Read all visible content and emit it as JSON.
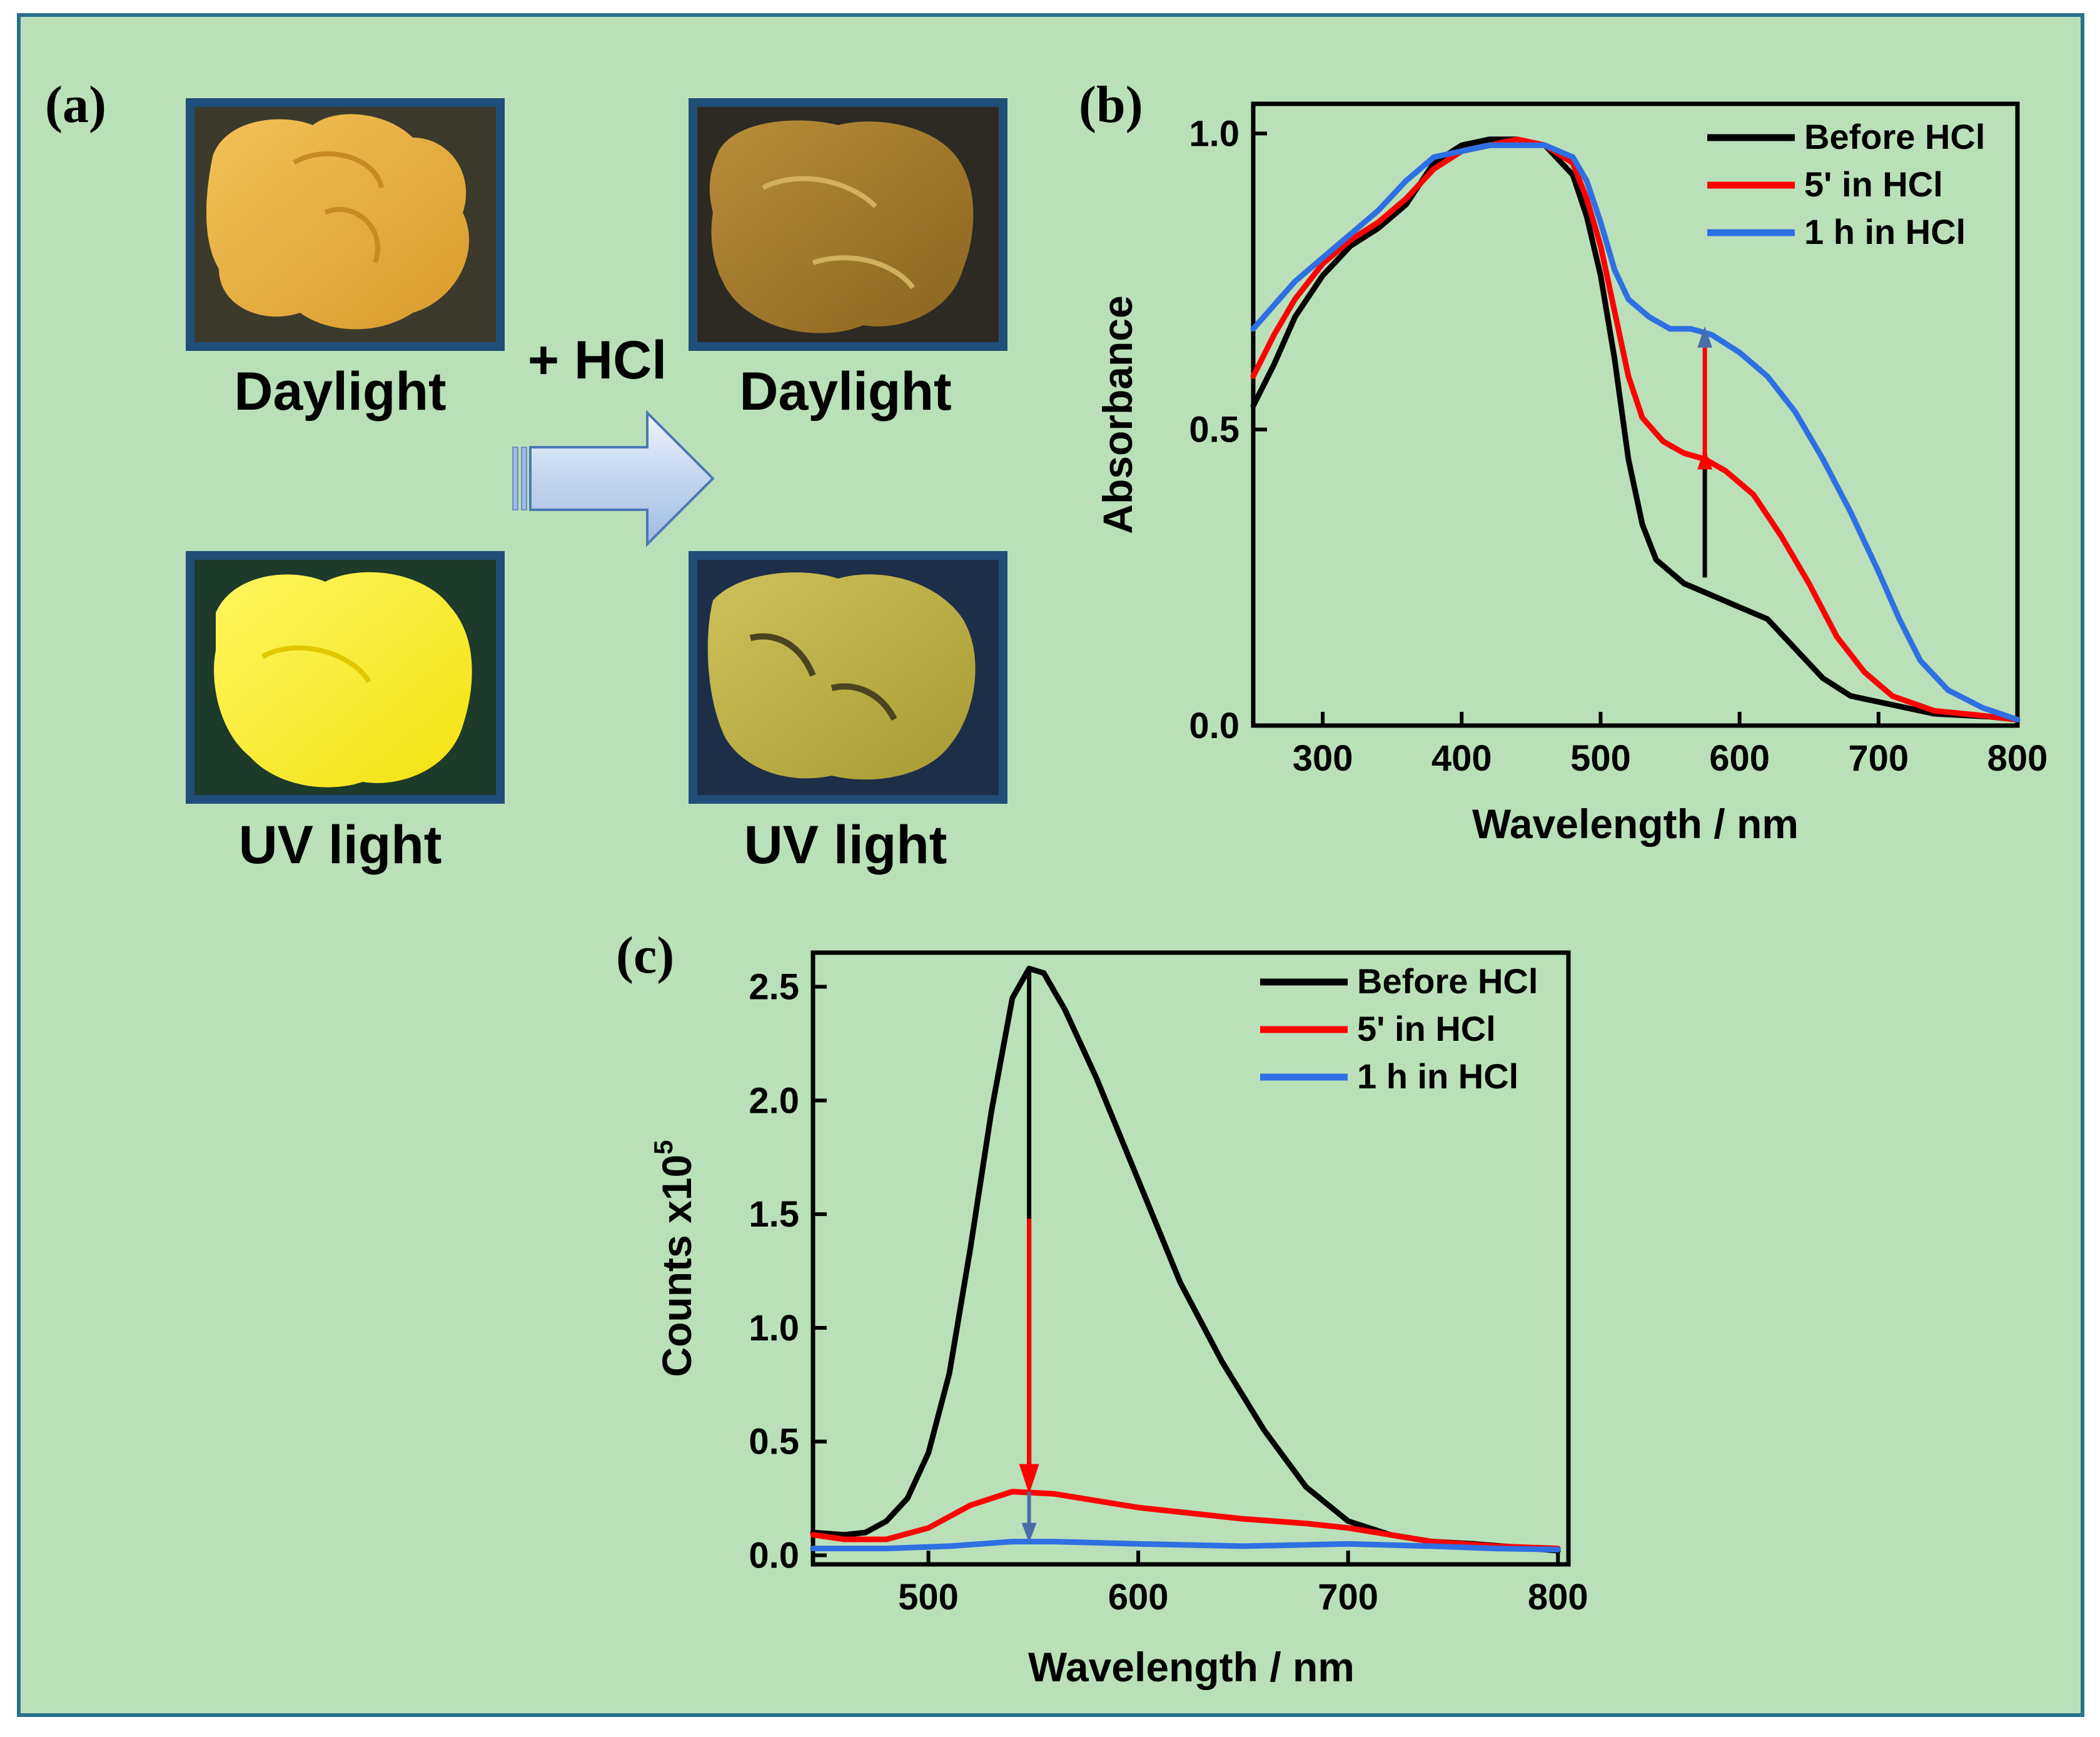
{
  "colors": {
    "background": "#b9e0b8",
    "frame_border": "#2a6f8c",
    "photo_border": "#1f4e78",
    "before": "#000000",
    "five_min": "#ff0000",
    "one_hour": "#2f6fe4",
    "arrow_fill": "#c8d9f0"
  },
  "panel_a": {
    "label": "(a)",
    "reagent": "+ HCl",
    "photos": [
      {
        "caption": "Daylight",
        "icon": "orange-solid-photo"
      },
      {
        "caption": "Daylight",
        "icon": "dark-orange-solid-photo"
      },
      {
        "caption": "UV light",
        "icon": "bright-yellow-emission-photo"
      },
      {
        "caption": "UV light",
        "icon": "dim-yellow-emission-photo"
      }
    ]
  },
  "chart_data": [
    {
      "id": "b",
      "label": "(b)",
      "type": "line",
      "xlabel": "Wavelength / nm",
      "ylabel": "Absorbance",
      "xlim": [
        250,
        800
      ],
      "ylim": [
        0,
        1.05
      ],
      "xticks": [
        "300",
        "400",
        "500",
        "600",
        "700",
        "800"
      ],
      "xtick_values": [
        300,
        400,
        500,
        600,
        700,
        800
      ],
      "yticks": [
        "0.0",
        "0.5",
        "1.0"
      ],
      "ytick_values": [
        0,
        0.5,
        1.0
      ],
      "legend_position": "top-right",
      "series": [
        {
          "name": "Before HCl",
          "color": "#000000",
          "points": [
            [
              250,
              0.54
            ],
            [
              265,
              0.61
            ],
            [
              280,
              0.69
            ],
            [
              300,
              0.76
            ],
            [
              320,
              0.81
            ],
            [
              340,
              0.84
            ],
            [
              360,
              0.88
            ],
            [
              380,
              0.95
            ],
            [
              400,
              0.98
            ],
            [
              420,
              0.99
            ],
            [
              440,
              0.99
            ],
            [
              460,
              0.98
            ],
            [
              480,
              0.93
            ],
            [
              490,
              0.86
            ],
            [
              500,
              0.76
            ],
            [
              510,
              0.62
            ],
            [
              520,
              0.45
            ],
            [
              530,
              0.34
            ],
            [
              540,
              0.28
            ],
            [
              560,
              0.24
            ],
            [
              580,
              0.22
            ],
            [
              600,
              0.2
            ],
            [
              620,
              0.18
            ],
            [
              640,
              0.13
            ],
            [
              660,
              0.08
            ],
            [
              680,
              0.05
            ],
            [
              700,
              0.04
            ],
            [
              740,
              0.02
            ],
            [
              780,
              0.015
            ],
            [
              800,
              0.01
            ]
          ]
        },
        {
          "name": "5' in HCl",
          "color": "#ff0000",
          "points": [
            [
              250,
              0.59
            ],
            [
              265,
              0.66
            ],
            [
              280,
              0.72
            ],
            [
              300,
              0.78
            ],
            [
              320,
              0.82
            ],
            [
              340,
              0.85
            ],
            [
              360,
              0.89
            ],
            [
              380,
              0.94
            ],
            [
              400,
              0.97
            ],
            [
              420,
              0.98
            ],
            [
              440,
              0.99
            ],
            [
              460,
              0.98
            ],
            [
              480,
              0.95
            ],
            [
              490,
              0.89
            ],
            [
              500,
              0.81
            ],
            [
              510,
              0.7
            ],
            [
              520,
              0.59
            ],
            [
              530,
              0.52
            ],
            [
              545,
              0.48
            ],
            [
              560,
              0.46
            ],
            [
              575,
              0.45
            ],
            [
              590,
              0.43
            ],
            [
              610,
              0.39
            ],
            [
              630,
              0.32
            ],
            [
              650,
              0.24
            ],
            [
              670,
              0.15
            ],
            [
              690,
              0.09
            ],
            [
              710,
              0.05
            ],
            [
              740,
              0.025
            ],
            [
              770,
              0.018
            ],
            [
              800,
              0.01
            ]
          ]
        },
        {
          "name": "1 h in HCl",
          "color": "#2f6fe4",
          "points": [
            [
              250,
              0.67
            ],
            [
              265,
              0.71
            ],
            [
              280,
              0.75
            ],
            [
              300,
              0.79
            ],
            [
              320,
              0.83
            ],
            [
              340,
              0.87
            ],
            [
              360,
              0.92
            ],
            [
              380,
              0.96
            ],
            [
              400,
              0.97
            ],
            [
              420,
              0.98
            ],
            [
              440,
              0.98
            ],
            [
              460,
              0.98
            ],
            [
              480,
              0.96
            ],
            [
              490,
              0.92
            ],
            [
              500,
              0.85
            ],
            [
              510,
              0.77
            ],
            [
              520,
              0.72
            ],
            [
              535,
              0.69
            ],
            [
              550,
              0.67
            ],
            [
              565,
              0.67
            ],
            [
              580,
              0.66
            ],
            [
              600,
              0.63
            ],
            [
              620,
              0.59
            ],
            [
              640,
              0.53
            ],
            [
              660,
              0.45
            ],
            [
              680,
              0.36
            ],
            [
              700,
              0.26
            ],
            [
              715,
              0.18
            ],
            [
              730,
              0.11
            ],
            [
              750,
              0.06
            ],
            [
              775,
              0.03
            ],
            [
              800,
              0.01
            ]
          ]
        }
      ],
      "annotation": {
        "type": "arrow-up",
        "x": 575,
        "y_from": 0.25,
        "y_to": 0.67
      }
    },
    {
      "id": "c",
      "label": "(c)",
      "type": "line",
      "xlabel": "Wavelength / nm",
      "ylabel": "Counts x10",
      "ylabel_superscript": "5",
      "xlim": [
        445,
        805
      ],
      "ylim": [
        -0.04,
        2.65
      ],
      "xticks": [
        "500",
        "600",
        "700",
        "800"
      ],
      "xtick_values": [
        500,
        600,
        700,
        800
      ],
      "yticks": [
        "0.0",
        "0.5",
        "1.0",
        "1.5",
        "2.0",
        "2.5"
      ],
      "ytick_values": [
        0,
        0.5,
        1.0,
        1.5,
        2.0,
        2.5
      ],
      "legend_position": "top-right",
      "series": [
        {
          "name": "Before HCl",
          "color": "#000000",
          "points": [
            [
              445,
              0.1
            ],
            [
              460,
              0.09
            ],
            [
              470,
              0.1
            ],
            [
              480,
              0.15
            ],
            [
              490,
              0.25
            ],
            [
              500,
              0.45
            ],
            [
              510,
              0.8
            ],
            [
              520,
              1.35
            ],
            [
              530,
              1.95
            ],
            [
              540,
              2.45
            ],
            [
              548,
              2.58
            ],
            [
              555,
              2.56
            ],
            [
              565,
              2.4
            ],
            [
              580,
              2.1
            ],
            [
              600,
              1.65
            ],
            [
              620,
              1.2
            ],
            [
              640,
              0.85
            ],
            [
              660,
              0.55
            ],
            [
              680,
              0.3
            ],
            [
              700,
              0.15
            ],
            [
              720,
              0.09
            ],
            [
              740,
              0.06
            ],
            [
              760,
              0.05
            ],
            [
              780,
              0.035
            ],
            [
              800,
              0.02
            ]
          ]
        },
        {
          "name": "5' in HCl",
          "color": "#ff0000",
          "points": [
            [
              445,
              0.09
            ],
            [
              460,
              0.07
            ],
            [
              480,
              0.07
            ],
            [
              500,
              0.12
            ],
            [
              520,
              0.22
            ],
            [
              540,
              0.28
            ],
            [
              560,
              0.27
            ],
            [
              580,
              0.24
            ],
            [
              600,
              0.21
            ],
            [
              620,
              0.19
            ],
            [
              650,
              0.16
            ],
            [
              680,
              0.14
            ],
            [
              700,
              0.12
            ],
            [
              720,
              0.09
            ],
            [
              740,
              0.06
            ],
            [
              770,
              0.04
            ],
            [
              800,
              0.03
            ]
          ]
        },
        {
          "name": "1 h in HCl",
          "color": "#2f6fe4",
          "points": [
            [
              445,
              0.03
            ],
            [
              480,
              0.03
            ],
            [
              510,
              0.04
            ],
            [
              540,
              0.06
            ],
            [
              560,
              0.06
            ],
            [
              600,
              0.05
            ],
            [
              650,
              0.04
            ],
            [
              700,
              0.05
            ],
            [
              740,
              0.04
            ],
            [
              770,
              0.03
            ],
            [
              800,
              0.025
            ]
          ]
        }
      ],
      "annotation": {
        "type": "arrow-down",
        "x": 548,
        "y_from": 2.58,
        "y_to": 0.06
      }
    }
  ]
}
